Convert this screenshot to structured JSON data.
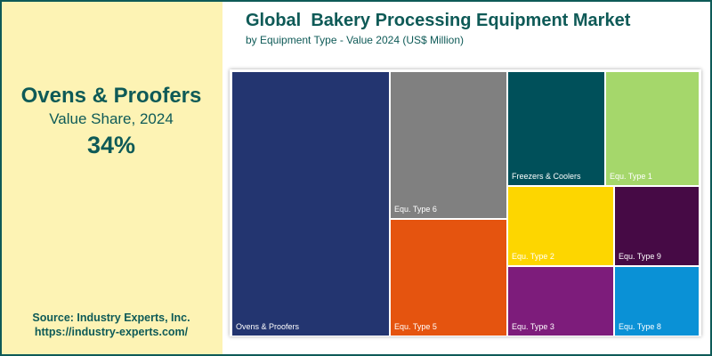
{
  "left_panel": {
    "segment_name": "Ovens & Proofers",
    "share_label": "Value Share, 2024",
    "share_value": "34%",
    "source_line1": "Source: Industry Experts, Inc.",
    "source_line2": "https://industry-experts.com/"
  },
  "chart_data": {
    "type": "treemap",
    "title": "Global  Bakery Processing Equipment Market",
    "subtitle": "by Equipment Type - Value 2024 (US$ Million)",
    "items": [
      {
        "label": "Ovens & Proofers",
        "share": 34,
        "color": "#233570"
      },
      {
        "label": "Equ. Type 6",
        "color": "#808080"
      },
      {
        "label": "Equ. Type 5",
        "color": "#e5540f"
      },
      {
        "label": "Freezers & Coolers",
        "color": "#00505a"
      },
      {
        "label": "Equ. Type 1",
        "color": "#a5d76b"
      },
      {
        "label": "Equ. Type 2",
        "color": "#fdd600"
      },
      {
        "label": "Equ. Type 9",
        "color": "#460a45"
      },
      {
        "label": "Equ. Type 3",
        "color": "#7d1c7b"
      },
      {
        "label": "Equ. Type 8",
        "color": "#0a91d6"
      }
    ]
  }
}
